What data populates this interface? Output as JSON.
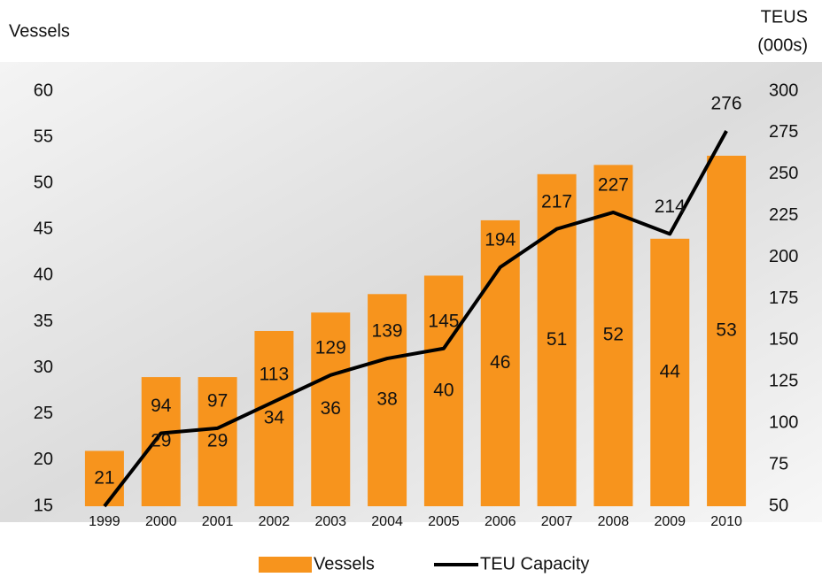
{
  "chart_data": {
    "type": "bar_line",
    "y_label": "Vessels",
    "y2_label": [
      "TEUS",
      "(000s)"
    ],
    "categories": [
      "1999",
      "2000",
      "2001",
      "2002",
      "2003",
      "2004",
      "2005",
      "2006",
      "2007",
      "2008",
      "2009",
      "2010"
    ],
    "series": [
      {
        "name": "Vessels",
        "type": "bar",
        "color": "#f7941d",
        "axis": "y",
        "values": [
          21,
          29,
          29,
          34,
          36,
          38,
          40,
          46,
          51,
          52,
          44,
          53
        ]
      },
      {
        "name": "TEU Capacity",
        "type": "line",
        "color": "#000000",
        "axis": "y2",
        "values": [
          50,
          94,
          97,
          113,
          129,
          139,
          145,
          194,
          217,
          227,
          214,
          276
        ],
        "value_labels": [
          null,
          "94",
          "97",
          "113",
          "129",
          "139",
          "145",
          "194",
          "217",
          "227",
          "214",
          "276"
        ]
      }
    ],
    "ylim": [
      15,
      60
    ],
    "yticks": [
      15,
      20,
      25,
      30,
      35,
      40,
      45,
      50,
      55,
      60
    ],
    "y2lim": [
      50,
      300
    ],
    "y2ticks": [
      50,
      75,
      100,
      125,
      150,
      175,
      200,
      225,
      250,
      275,
      300
    ],
    "legend": "bottom"
  }
}
